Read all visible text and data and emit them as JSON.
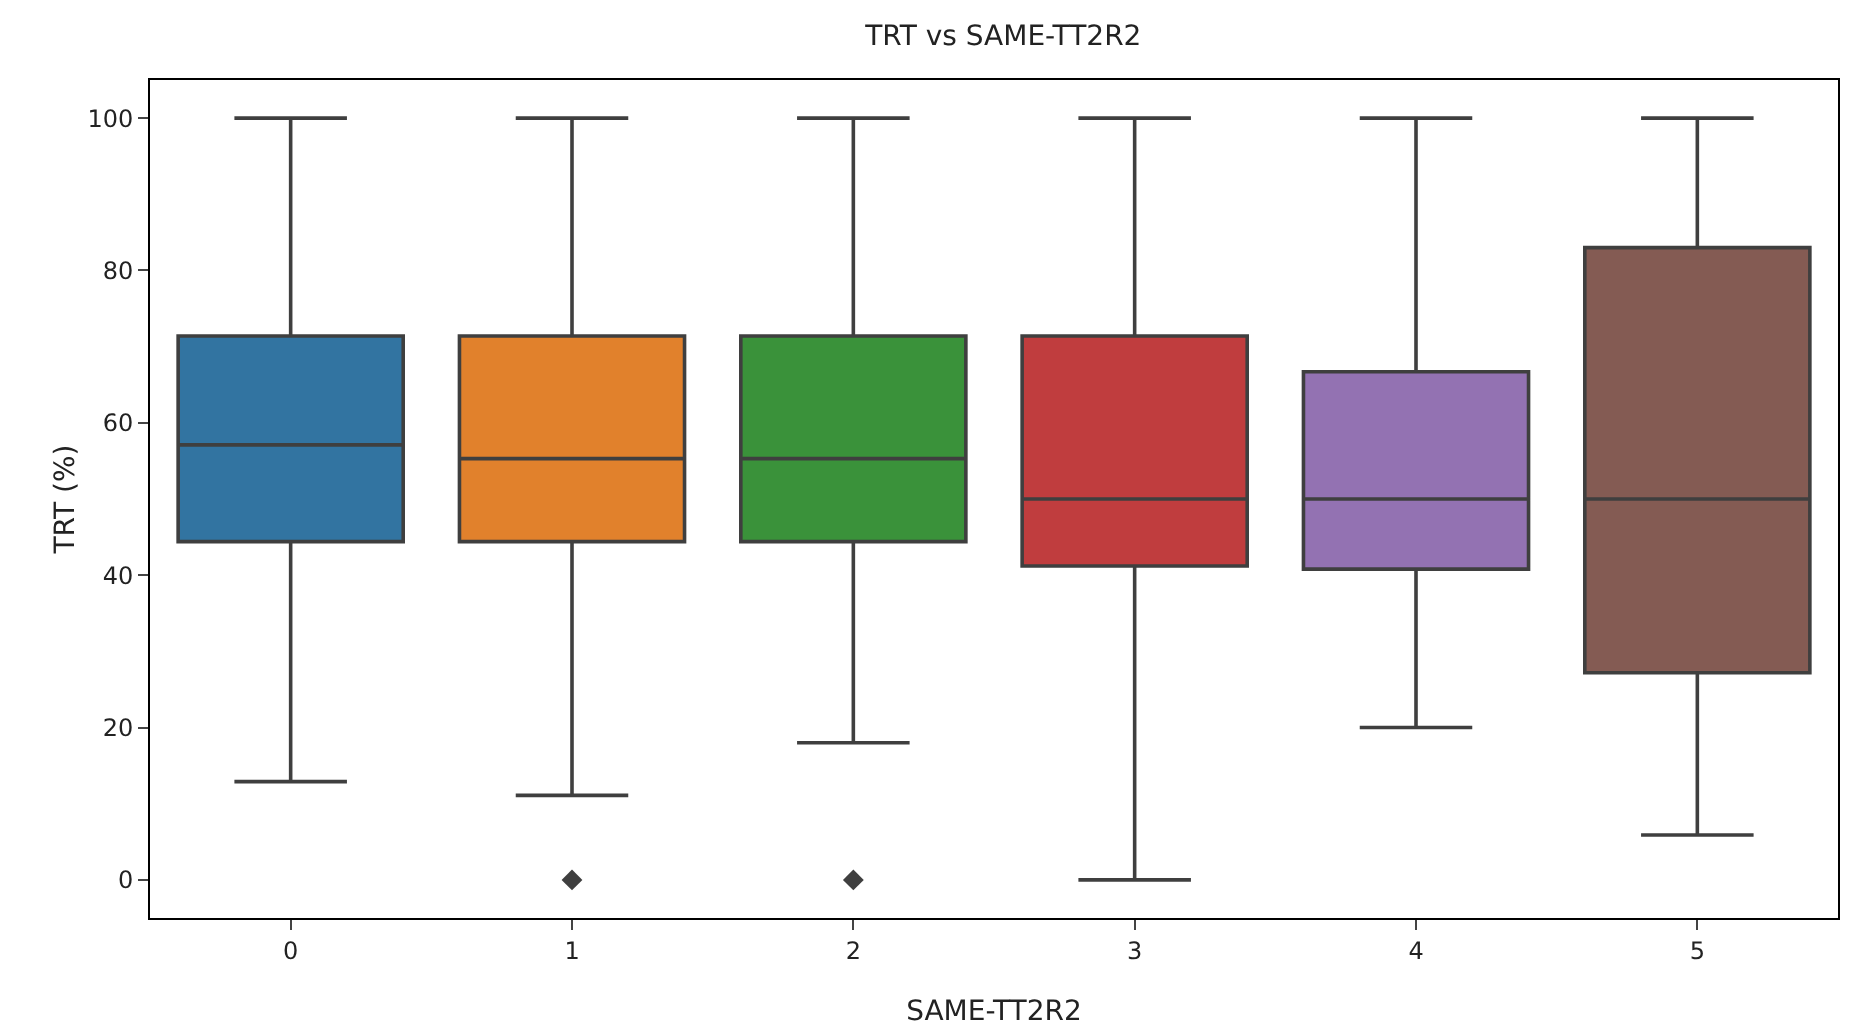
{
  "chart_data": {
    "type": "box",
    "title": "TRT vs SAME-TT2R2",
    "xlabel": "SAME-TT2R2",
    "ylabel": "TRT (%)",
    "categories": [
      "0",
      "1",
      "2",
      "3",
      "4",
      "5"
    ],
    "colors": [
      "#3274a1",
      "#e1812c",
      "#3a923a",
      "#c03d3e",
      "#9372b2",
      "#845b53"
    ],
    "boxes": [
      {
        "low": 12.9,
        "q1": 44.4,
        "median": 57.1,
        "q3": 71.4,
        "high": 100
      },
      {
        "low": 11.1,
        "q1": 44.4,
        "median": 55.3,
        "q3": 71.4,
        "high": 100,
        "outliers": [
          0
        ]
      },
      {
        "low": 18,
        "q1": 44.4,
        "median": 55.3,
        "q3": 71.4,
        "high": 100,
        "outliers": [
          0
        ]
      },
      {
        "low": 0,
        "q1": 41.2,
        "median": 50,
        "q3": 71.4,
        "high": 100
      },
      {
        "low": 20,
        "q1": 40.8,
        "median": 50,
        "q3": 66.7,
        "high": 100
      },
      {
        "low": 5.9,
        "q1": 27.2,
        "median": 50,
        "q3": 83,
        "high": 100
      }
    ],
    "ylim": [
      -5,
      105
    ],
    "yticks": [
      0,
      20,
      40,
      60,
      80,
      100
    ],
    "grid": false,
    "marker": "diamond"
  }
}
